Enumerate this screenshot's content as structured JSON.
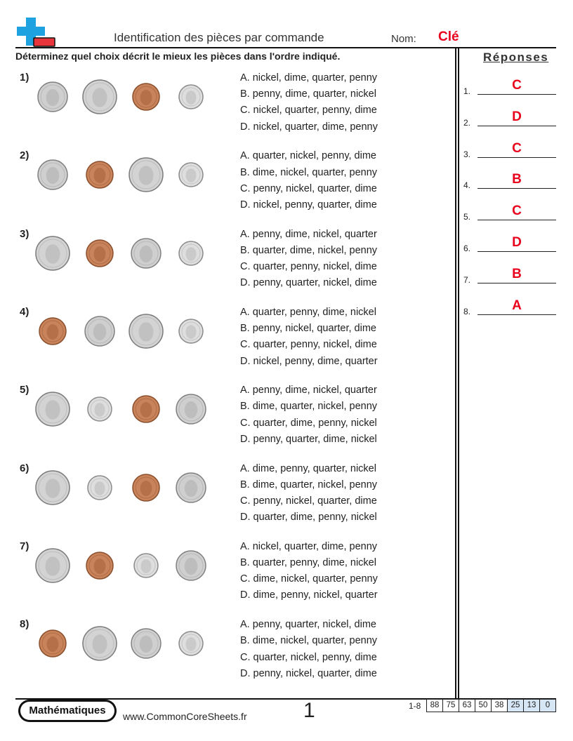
{
  "header": {
    "title": "Identification des pièces par commande",
    "nom_label": "Nom:",
    "nom_value": "Clé"
  },
  "instructions": "Déterminez quel choix décrit le mieux les pièces dans l'ordre indiqué.",
  "answers": {
    "title": "Réponses",
    "items": [
      {
        "num": "1.",
        "letter": "C"
      },
      {
        "num": "2.",
        "letter": "D"
      },
      {
        "num": "3.",
        "letter": "C"
      },
      {
        "num": "4.",
        "letter": "B"
      },
      {
        "num": "5.",
        "letter": "C"
      },
      {
        "num": "6.",
        "letter": "D"
      },
      {
        "num": "7.",
        "letter": "B"
      },
      {
        "num": "8.",
        "letter": "A"
      }
    ]
  },
  "questions": [
    {
      "num": "1)",
      "coins": [
        "nickel",
        "quarter",
        "penny",
        "dime"
      ],
      "choices": [
        "A. nickel, dime, quarter, penny",
        "B. penny, dime, quarter, nickel",
        "C. nickel, quarter, penny, dime",
        "D. nickel, quarter, dime, penny"
      ]
    },
    {
      "num": "2)",
      "coins": [
        "nickel",
        "penny",
        "quarter",
        "dime"
      ],
      "choices": [
        "A. quarter, nickel, penny, dime",
        "B. dime, nickel, quarter, penny",
        "C. penny, nickel, quarter, dime",
        "D. nickel, penny, quarter, dime"
      ]
    },
    {
      "num": "3)",
      "coins": [
        "quarter",
        "penny",
        "nickel",
        "dime"
      ],
      "choices": [
        "A. penny, dime, nickel, quarter",
        "B. quarter, dime, nickel, penny",
        "C. quarter, penny, nickel, dime",
        "D. penny, quarter, nickel, dime"
      ]
    },
    {
      "num": "4)",
      "coins": [
        "penny",
        "nickel",
        "quarter",
        "dime"
      ],
      "choices": [
        "A. quarter, penny, dime, nickel",
        "B. penny, nickel, quarter, dime",
        "C. quarter, penny, nickel, dime",
        "D. nickel, penny, dime, quarter"
      ]
    },
    {
      "num": "5)",
      "coins": [
        "quarter",
        "dime",
        "penny",
        "nickel"
      ],
      "choices": [
        "A. penny, dime, nickel, quarter",
        "B. dime, quarter, nickel, penny",
        "C. quarter, dime, penny, nickel",
        "D. penny, quarter, dime, nickel"
      ]
    },
    {
      "num": "6)",
      "coins": [
        "quarter",
        "dime",
        "penny",
        "nickel"
      ],
      "choices": [
        "A. dime, penny, quarter, nickel",
        "B. dime, quarter, nickel, penny",
        "C. penny, nickel, quarter, dime",
        "D. quarter, dime, penny, nickel"
      ]
    },
    {
      "num": "7)",
      "coins": [
        "quarter",
        "penny",
        "dime",
        "nickel"
      ],
      "choices": [
        "A. nickel, quarter, dime, penny",
        "B. quarter, penny, dime, nickel",
        "C. dime, nickel, quarter, penny",
        "D. dime, penny, nickel, quarter"
      ]
    },
    {
      "num": "8)",
      "coins": [
        "penny",
        "quarter",
        "nickel",
        "dime"
      ],
      "choices": [
        "A. penny, quarter, nickel, dime",
        "B. dime, nickel, quarter, penny",
        "C. quarter, nickel, penny, dime",
        "D. penny, nickel, quarter, dime"
      ]
    }
  ],
  "footer": {
    "badge": "Mathématiques",
    "website": "www.CommonCoreSheets.fr",
    "page": "1",
    "score_label": "1-8",
    "scores": [
      "88",
      "75",
      "63",
      "50",
      "38",
      "25",
      "13",
      "0"
    ],
    "highlighted_scores": [
      "25",
      "13",
      "0"
    ]
  },
  "colors": {
    "answer_red": "#e8001c",
    "logo_blue": "#1fa3e0",
    "logo_red": "#e8343b",
    "score_highlight": "#d6e6f5"
  }
}
